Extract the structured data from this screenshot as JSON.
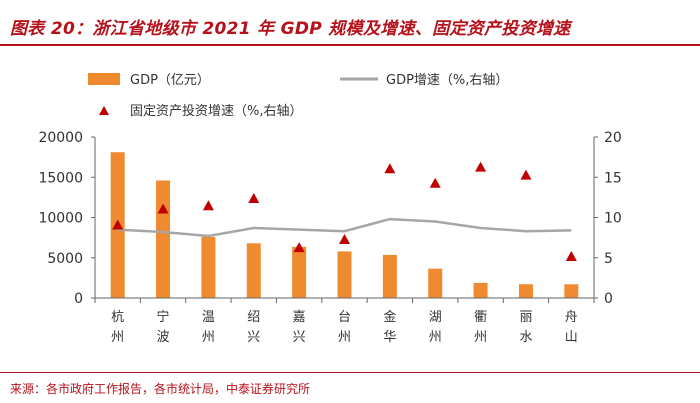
{
  "header": {
    "title": "图表 20：浙江省地级市 2021 年 GDP 规模及增速、固定资产投资增速"
  },
  "footer": {
    "source": "来源：各市政府工作报告，各市统计局，中泰证券研究所"
  },
  "colors": {
    "title": "#b5121b",
    "bar": "#f08a30",
    "line": "#a6a6a6",
    "marker": "#c00000"
  },
  "chart_data": {
    "type": "bar",
    "title": "",
    "categories": [
      "杭州",
      "宁波",
      "温州",
      "绍兴",
      "嘉兴",
      "台州",
      "金华",
      "湖州",
      "衢州",
      "丽水",
      "舟山"
    ],
    "series": [
      {
        "name": "GDP（亿元）",
        "type": "bar",
        "axis": "left",
        "values": [
          18109,
          14595,
          7585,
          6795,
          6355,
          5786,
          5355,
          3645,
          1876,
          1710,
          1703
        ]
      },
      {
        "name": "GDP增速（%,右轴）",
        "type": "line",
        "axis": "right",
        "values": [
          8.5,
          8.2,
          7.7,
          8.7,
          8.5,
          8.3,
          9.8,
          9.5,
          8.7,
          8.3,
          8.4
        ]
      },
      {
        "name": "固定资产投资增速（%,右轴）",
        "type": "scatter",
        "axis": "right",
        "values": [
          9.0,
          11.0,
          11.4,
          12.3,
          6.2,
          7.2,
          16.0,
          14.2,
          16.2,
          15.2,
          5.1
        ]
      }
    ],
    "ylim": [
      0,
      20000
    ],
    "yticks": [
      "0",
      "5000",
      "10000",
      "15000",
      "20000"
    ],
    "y2lim": [
      0,
      20
    ],
    "y2ticks": [
      "0",
      "5",
      "10",
      "15",
      "20"
    ],
    "legend": {
      "bar": "GDP（亿元）",
      "line": "GDP增速（%,右轴）",
      "scatter": "固定资产投资增速（%,右轴）"
    }
  }
}
